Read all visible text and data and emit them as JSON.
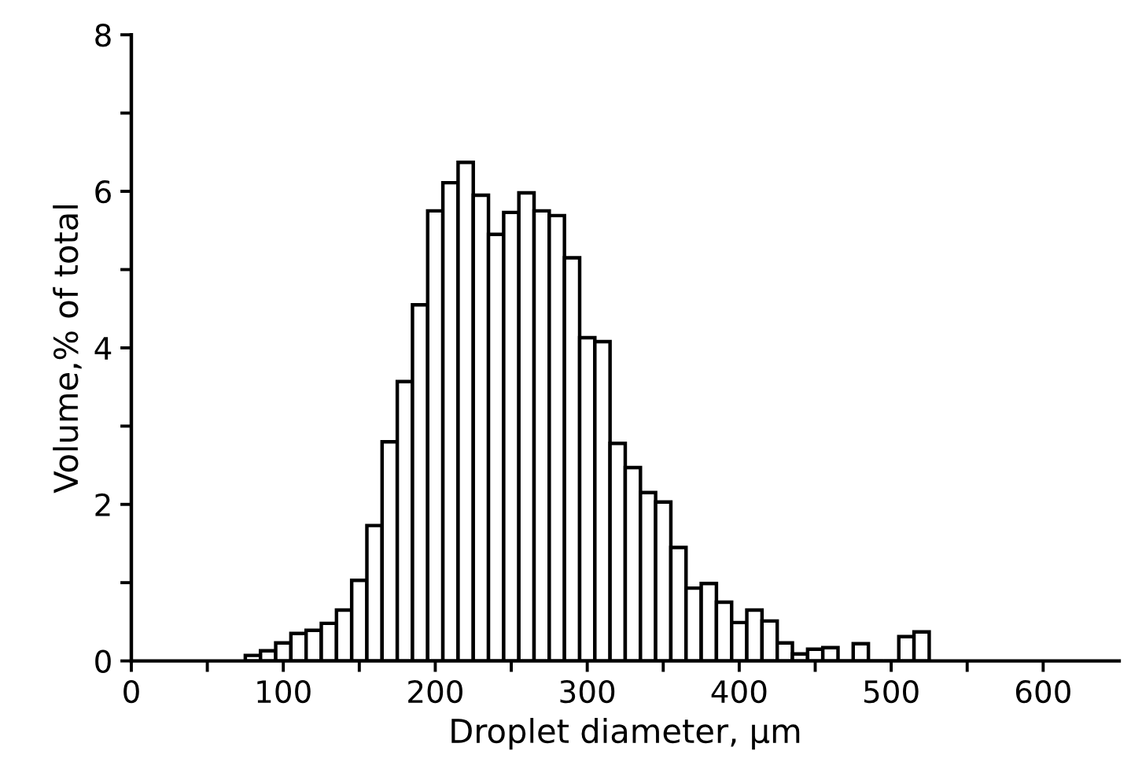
{
  "chart_data": {
    "type": "histogram",
    "xlabel": "Droplet diameter, μm",
    "ylabel": "Volume,% of total",
    "bins": [
      55,
      65,
      75,
      85,
      95,
      105,
      115,
      125,
      135,
      145,
      155,
      165,
      175,
      185,
      195,
      205,
      215,
      225,
      235,
      245,
      255,
      265,
      275,
      285,
      295,
      305,
      315,
      325,
      335,
      345,
      355,
      365,
      375,
      385,
      395,
      405,
      415,
      425,
      435,
      445,
      455,
      465,
      475,
      485,
      495,
      505,
      515,
      525
    ],
    "values": [
      null,
      null,
      0.07,
      0.13,
      0.23,
      0.35,
      0.39,
      0.48,
      0.65,
      1.03,
      1.73,
      2.8,
      3.57,
      4.55,
      5.75,
      6.11,
      6.37,
      5.95,
      5.45,
      5.73,
      5.98,
      5.75,
      5.69,
      5.15,
      4.13,
      4.08,
      2.78,
      2.47,
      2.15,
      2.03,
      1.45,
      0.93,
      0.99,
      0.75,
      0.49,
      0.65,
      0.51,
      0.23,
      0.09,
      0.15,
      0.17,
      0,
      0.22,
      0,
      0,
      0.31,
      0.37
    ],
    "color": "#ffffff",
    "xlim": [
      0,
      650
    ],
    "xticks": [
      0,
      {
        "value": 50,
        "label": null
      },
      100,
      {
        "value": 150,
        "label": null
      },
      200,
      {
        "value": 250,
        "label": null
      },
      300,
      {
        "value": 350,
        "label": null
      },
      400,
      {
        "value": 450,
        "label": null
      },
      500,
      {
        "value": 550,
        "label": null
      },
      600
    ],
    "ylim": [
      0,
      8
    ],
    "yticks": [
      0,
      {
        "value": 1,
        "label": null
      },
      2,
      {
        "value": 3,
        "label": null
      },
      4,
      {
        "value": 5,
        "label": null
      },
      6,
      {
        "value": 7,
        "label": null
      },
      8
    ],
    "grid": false,
    "legend": false
  }
}
